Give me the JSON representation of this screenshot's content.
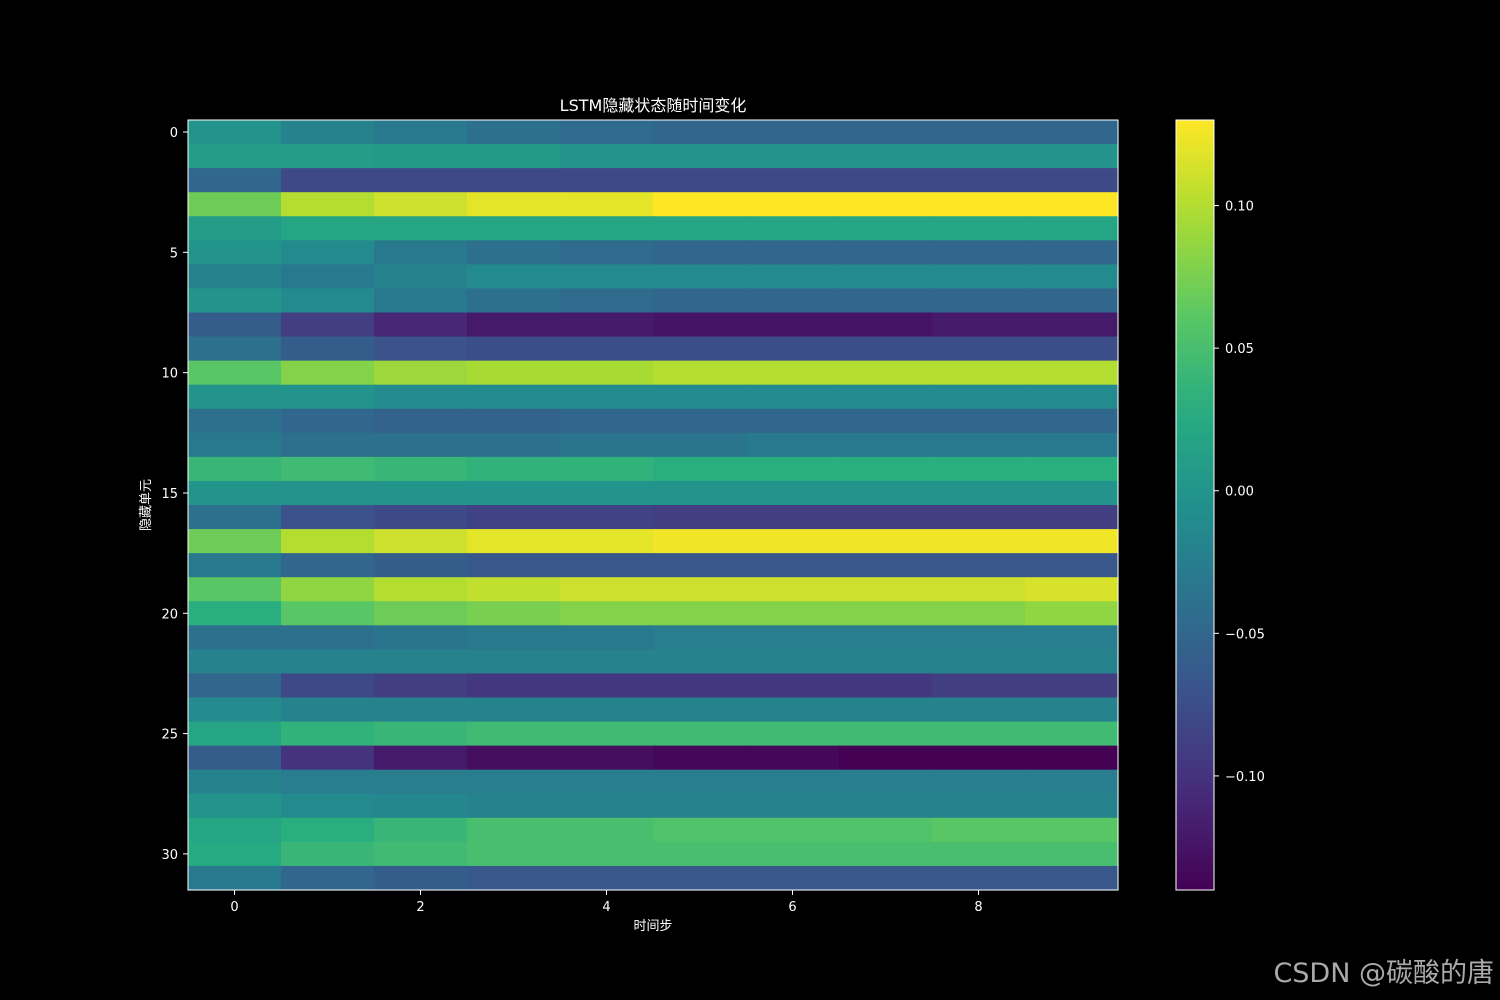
{
  "chart_data": {
    "type": "heatmap",
    "title": "LSTM隐藏状态随时间变化",
    "xlabel": "时间步",
    "ylabel": "隐藏单元",
    "colormap": "viridis",
    "colorbar_range": [
      -0.14,
      0.13
    ],
    "colorbar_ticks": [
      0.1,
      0.05,
      0.0,
      -0.05,
      -0.1
    ],
    "colorbar_tick_labels": [
      "0.10",
      "0.05",
      "0.00",
      "−0.05",
      "−0.10"
    ],
    "x_ticks": [
      0,
      2,
      4,
      6,
      8
    ],
    "y_ticks": [
      0,
      5,
      10,
      15,
      20,
      25,
      30
    ],
    "x": [
      0,
      1,
      2,
      3,
      4,
      5,
      6,
      7,
      8,
      9
    ],
    "y": [
      0,
      1,
      2,
      3,
      4,
      5,
      6,
      7,
      8,
      9,
      10,
      11,
      12,
      13,
      14,
      15,
      16,
      17,
      18,
      19,
      20,
      21,
      22,
      23,
      24,
      25,
      26,
      27,
      28,
      29,
      30,
      31
    ],
    "values": [
      [
        0.0,
        -0.02,
        -0.03,
        -0.04,
        -0.045,
        -0.05,
        -0.05,
        -0.05,
        -0.05,
        -0.05
      ],
      [
        0.01,
        0.01,
        0.005,
        0.005,
        0.0,
        0.0,
        0.0,
        0.0,
        0.0,
        0.0
      ],
      [
        -0.05,
        -0.08,
        -0.08,
        -0.08,
        -0.08,
        -0.08,
        -0.08,
        -0.08,
        -0.08,
        -0.08
      ],
      [
        0.07,
        0.1,
        0.11,
        0.12,
        0.12,
        0.13,
        0.13,
        0.13,
        0.13,
        0.13
      ],
      [
        0.01,
        0.02,
        0.02,
        0.02,
        0.02,
        0.02,
        0.02,
        0.02,
        0.02,
        0.02
      ],
      [
        0.0,
        -0.01,
        -0.03,
        -0.04,
        -0.045,
        -0.05,
        -0.05,
        -0.05,
        -0.05,
        -0.05
      ],
      [
        -0.02,
        -0.03,
        -0.02,
        -0.01,
        -0.01,
        -0.01,
        -0.01,
        -0.01,
        -0.01,
        -0.01
      ],
      [
        0.0,
        -0.01,
        -0.03,
        -0.04,
        -0.045,
        -0.05,
        -0.05,
        -0.05,
        -0.05,
        -0.05
      ],
      [
        -0.06,
        -0.09,
        -0.11,
        -0.12,
        -0.12,
        -0.125,
        -0.125,
        -0.125,
        -0.12,
        -0.12
      ],
      [
        -0.04,
        -0.06,
        -0.07,
        -0.075,
        -0.075,
        -0.075,
        -0.075,
        -0.075,
        -0.075,
        -0.075
      ],
      [
        0.06,
        0.08,
        0.09,
        0.095,
        0.095,
        0.1,
        0.1,
        0.1,
        0.1,
        0.1
      ],
      [
        0.0,
        0.0,
        -0.01,
        -0.01,
        -0.01,
        -0.01,
        -0.01,
        -0.01,
        -0.01,
        -0.01
      ],
      [
        -0.04,
        -0.05,
        -0.055,
        -0.055,
        -0.05,
        -0.05,
        -0.05,
        -0.05,
        -0.05,
        -0.05
      ],
      [
        -0.03,
        -0.04,
        -0.04,
        -0.04,
        -0.035,
        -0.035,
        -0.03,
        -0.03,
        -0.03,
        -0.03
      ],
      [
        0.04,
        0.045,
        0.04,
        0.035,
        0.035,
        0.03,
        0.03,
        0.03,
        0.03,
        0.03
      ],
      [
        0.0,
        0.0,
        0.0,
        0.0,
        0.0,
        0.0,
        0.0,
        0.0,
        0.0,
        0.0
      ],
      [
        -0.04,
        -0.07,
        -0.08,
        -0.085,
        -0.085,
        -0.09,
        -0.09,
        -0.09,
        -0.09,
        -0.09
      ],
      [
        0.07,
        0.1,
        0.11,
        0.12,
        0.12,
        0.125,
        0.125,
        0.125,
        0.125,
        0.125
      ],
      [
        -0.03,
        -0.05,
        -0.06,
        -0.065,
        -0.065,
        -0.065,
        -0.065,
        -0.065,
        -0.065,
        -0.065
      ],
      [
        0.06,
        0.085,
        0.1,
        0.105,
        0.11,
        0.11,
        0.11,
        0.11,
        0.11,
        0.115
      ],
      [
        0.03,
        0.06,
        0.07,
        0.075,
        0.08,
        0.08,
        0.08,
        0.08,
        0.08,
        0.085
      ],
      [
        -0.04,
        -0.04,
        -0.035,
        -0.03,
        -0.03,
        -0.025,
        -0.025,
        -0.025,
        -0.025,
        -0.025
      ],
      [
        -0.02,
        -0.02,
        -0.02,
        -0.02,
        -0.02,
        -0.02,
        -0.02,
        -0.02,
        -0.02,
        -0.02
      ],
      [
        -0.05,
        -0.08,
        -0.09,
        -0.095,
        -0.095,
        -0.095,
        -0.095,
        -0.095,
        -0.09,
        -0.09
      ],
      [
        -0.01,
        -0.02,
        -0.02,
        -0.02,
        -0.02,
        -0.02,
        -0.02,
        -0.02,
        -0.02,
        -0.02
      ],
      [
        0.02,
        0.035,
        0.04,
        0.045,
        0.045,
        0.045,
        0.045,
        0.045,
        0.045,
        0.045
      ],
      [
        -0.06,
        -0.1,
        -0.12,
        -0.13,
        -0.13,
        -0.135,
        -0.135,
        -0.14,
        -0.14,
        -0.14
      ],
      [
        -0.02,
        -0.025,
        -0.025,
        -0.025,
        -0.025,
        -0.025,
        -0.025,
        -0.025,
        -0.025,
        -0.025
      ],
      [
        0.0,
        -0.01,
        -0.015,
        -0.02,
        -0.02,
        -0.02,
        -0.02,
        -0.02,
        -0.02,
        -0.02
      ],
      [
        0.02,
        0.03,
        0.04,
        0.05,
        0.05,
        0.055,
        0.055,
        0.055,
        0.06,
        0.06
      ],
      [
        0.025,
        0.04,
        0.045,
        0.05,
        0.05,
        0.05,
        0.05,
        0.05,
        0.05,
        0.05
      ],
      [
        -0.03,
        -0.05,
        -0.06,
        -0.065,
        -0.065,
        -0.065,
        -0.065,
        -0.065,
        -0.065,
        -0.065
      ]
    ]
  },
  "watermark": "CSDN @碳酸的唐"
}
